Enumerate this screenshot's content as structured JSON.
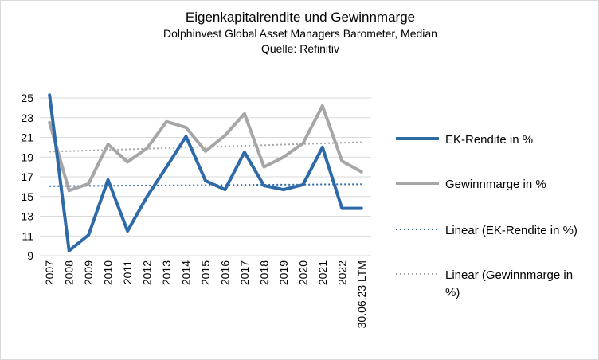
{
  "chart_data": {
    "type": "line",
    "title": "Eigenkapitalrendite und Gewinnmarge",
    "subtitle": "Dolphinvest Global Asset Managers Barometer, Median",
    "source": "Quelle: Refinitiv",
    "categories": [
      "2007",
      "2008",
      "2009",
      "2010",
      "2011",
      "2012",
      "2013",
      "2014",
      "2015",
      "2016",
      "2017",
      "2018",
      "2019",
      "2020",
      "2021",
      "2022",
      "30.06.23 LTM"
    ],
    "yticks": [
      "25",
      "23",
      "21",
      "19",
      "17",
      "15",
      "13",
      "11",
      "9"
    ],
    "ylim": [
      9,
      25
    ],
    "series": [
      {
        "name": "EK-Rendite in %",
        "color": "#2e6aa8",
        "style": "solid",
        "values": [
          25.3,
          9.5,
          11.1,
          16.7,
          11.5,
          15.0,
          18.0,
          21.1,
          16.6,
          15.7,
          19.5,
          16.1,
          15.7,
          16.2,
          20.0,
          13.8,
          13.8
        ]
      },
      {
        "name": "Gewinnmarge in %",
        "color": "#a6a6a6",
        "style": "solid",
        "values": [
          22.5,
          15.6,
          16.3,
          20.3,
          18.5,
          19.9,
          22.6,
          22.0,
          19.6,
          21.2,
          23.4,
          18.0,
          19.0,
          20.4,
          24.2,
          18.6,
          17.5
        ]
      },
      {
        "name": "Linear (EK-Rendite in %)",
        "color": "#2e6aa8",
        "style": "dotted",
        "values": [
          16.05,
          16.06,
          16.08,
          16.09,
          16.1,
          16.11,
          16.13,
          16.14,
          16.15,
          16.16,
          16.18,
          16.19,
          16.2,
          16.21,
          16.23,
          16.24,
          16.25
        ]
      },
      {
        "name": "Linear (Gewinnmarge in %)",
        "color": "#a6a6a6",
        "style": "dotted",
        "values": [
          19.55,
          19.61,
          19.67,
          19.73,
          19.79,
          19.85,
          19.91,
          19.97,
          20.03,
          20.09,
          20.15,
          20.21,
          20.27,
          20.33,
          20.39,
          20.45,
          20.51
        ]
      }
    ],
    "legend": {
      "position": "right",
      "entries": [
        "EK-Rendite in %",
        "Gewinnmarge in %",
        "Linear (EK-Rendite in %)",
        "Linear (Gewinnmarge in %)"
      ]
    }
  }
}
